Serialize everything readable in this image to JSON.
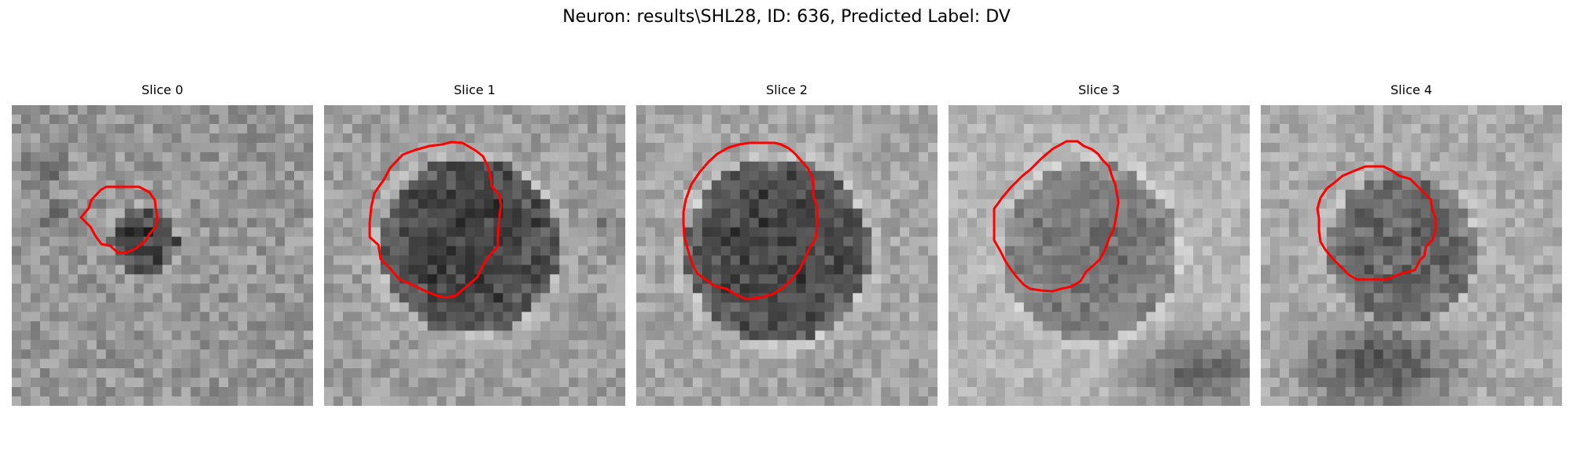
{
  "figure": {
    "title": "Neuron: results\\SHL28, ID: 636, Predicted Label: DV"
  },
  "colors": {
    "contour": "#ff0000",
    "background": "#ffffff"
  },
  "panels": [
    {
      "title": "Slice 0"
    },
    {
      "title": "Slice 1"
    },
    {
      "title": "Slice 2"
    },
    {
      "title": "Slice 3"
    },
    {
      "title": "Slice 4"
    }
  ]
}
